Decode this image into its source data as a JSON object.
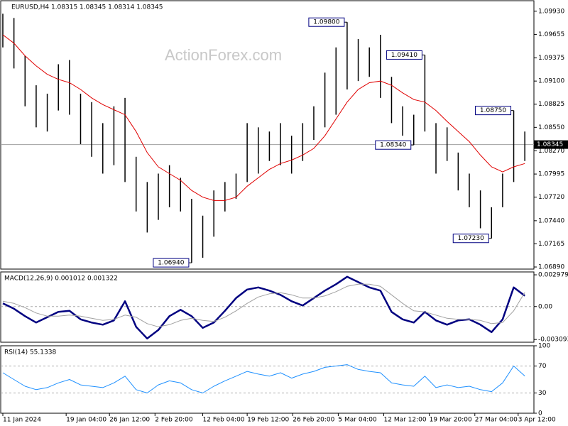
{
  "chart_data": [
    {
      "type": "ohlc",
      "title": "EURUSD,H4  1.08315 1.08345 1.08314 1.08345",
      "watermark": "ActionForex.com",
      "ylim": [
        1.06865,
        1.10055
      ],
      "yticks": [
        {
          "value": 1.0993,
          "label": "1.09930"
        },
        {
          "value": 1.09655,
          "label": "1.09655"
        },
        {
          "value": 1.09375,
          "label": "1.09375"
        },
        {
          "value": 1.091,
          "label": "1.09100"
        },
        {
          "value": 1.08825,
          "label": "1.08825"
        },
        {
          "value": 1.0855,
          "label": "1.08550"
        },
        {
          "value": 1.0827,
          "label": "1.08270"
        },
        {
          "value": 1.07995,
          "label": "1.07995"
        },
        {
          "value": 1.0772,
          "label": "1.07720"
        },
        {
          "value": 1.0744,
          "label": "1.07440"
        },
        {
          "value": 1.07165,
          "label": "1.07165"
        },
        {
          "value": 1.0689,
          "label": "1.06890"
        }
      ],
      "series": [
        {
          "kind": "bars",
          "color": "#000000",
          "high": [
            1.099,
            1.0985,
            1.094,
            1.0905,
            1.0895,
            1.093,
            1.0935,
            1.0895,
            1.0885,
            1.086,
            1.088,
            1.089,
            1.082,
            1.079,
            1.08,
            1.081,
            1.0795,
            1.077,
            1.075,
            1.078,
            1.079,
            1.08,
            1.086,
            1.0855,
            1.085,
            1.086,
            1.0845,
            1.086,
            1.088,
            1.092,
            1.095,
            1.098,
            1.096,
            1.095,
            1.0965,
            1.0915,
            1.088,
            1.087,
            1.0941,
            1.086,
            1.0855,
            1.0825,
            1.08,
            1.078,
            1.076,
            1.08,
            1.0875,
            1.085
          ],
          "low": [
            1.095,
            1.0925,
            1.088,
            1.0855,
            1.085,
            1.0875,
            1.087,
            1.0835,
            1.082,
            1.08,
            1.081,
            1.079,
            1.0755,
            1.073,
            1.0745,
            1.076,
            1.0755,
            1.0694,
            1.07,
            1.0725,
            1.0755,
            1.077,
            1.079,
            1.08,
            1.0815,
            1.081,
            1.08,
            1.0815,
            1.084,
            1.0855,
            1.087,
            1.09,
            1.091,
            1.0915,
            1.089,
            1.086,
            1.0845,
            1.0834,
            1.085,
            1.08,
            1.0815,
            1.078,
            1.076,
            1.0735,
            1.0723,
            1.076,
            1.079,
            1.0815
          ]
        },
        {
          "kind": "line",
          "color": "#e00000",
          "values": [
            1.0965,
            1.0955,
            1.094,
            1.0928,
            1.0918,
            1.0912,
            1.0908,
            1.09,
            1.089,
            1.0882,
            1.0876,
            1.087,
            1.085,
            1.0825,
            1.0808,
            1.08,
            1.0792,
            1.078,
            1.0772,
            1.0768,
            1.0768,
            1.0772,
            1.0785,
            1.0795,
            1.0805,
            1.0812,
            1.0816,
            1.0822,
            1.083,
            1.0845,
            1.0865,
            1.0885,
            1.09,
            1.0908,
            1.091,
            1.0905,
            1.0896,
            1.0888,
            1.0885,
            1.0875,
            1.0862,
            1.085,
            1.0838,
            1.0822,
            1.0808,
            1.0802,
            1.0808,
            1.0812
          ]
        }
      ],
      "last_price": {
        "value": 1.08345,
        "label": "1.08345"
      },
      "annotations": [
        {
          "x": 31,
          "value": 1.098,
          "label": "1.09800"
        },
        {
          "x": 38,
          "value": 1.0941,
          "label": "1.09410"
        },
        {
          "x": 46,
          "value": 1.0875,
          "label": "1.08750"
        },
        {
          "x": 37,
          "value": 1.0834,
          "label": "1.08340"
        },
        {
          "x": 44,
          "value": 1.0723,
          "label": "1.07230"
        },
        {
          "x": 17,
          "value": 1.0694,
          "label": "1.06940"
        }
      ]
    },
    {
      "type": "macd",
      "title": "MACD(12,26,9) 0.001012 0.001322",
      "ylim": [
        -0.00335,
        0.00325
      ],
      "yticks": [
        0.002979,
        {
          "value": 0,
          "label": "0.00"
        },
        -0.003093
      ],
      "series": [
        {
          "color": "#000080",
          "width": 2.5,
          "values": [
            0.0003,
            -0.0002,
            -0.0009,
            -0.0015,
            -0.001,
            -0.0005,
            -0.0004,
            -0.0012,
            -0.0015,
            -0.0017,
            -0.0013,
            0.0005,
            -0.0019,
            -0.003,
            -0.0022,
            -0.0009,
            -0.0003,
            -0.0009,
            -0.002,
            -0.0015,
            -0.0004,
            0.0008,
            0.0016,
            0.0018,
            0.0015,
            0.0011,
            0.0005,
            0.0001,
            0.0008,
            0.0015,
            0.0021,
            0.0028,
            0.0023,
            0.0018,
            0.0015,
            -0.0005,
            -0.0012,
            -0.0015,
            -0.0005,
            -0.0013,
            -0.0017,
            -0.0013,
            -0.0012,
            -0.0017,
            -0.0024,
            -0.0012,
            0.0018,
            0.001012
          ]
        },
        {
          "color": "#a0a0a0",
          "width": 1,
          "values": [
            0.0005,
            0.0003,
            -0.0001,
            -0.0006,
            -0.0009,
            -0.0009,
            -0.0008,
            -0.0009,
            -0.0011,
            -0.0013,
            -0.0012,
            -0.0008,
            -0.001,
            -0.0016,
            -0.0019,
            -0.0017,
            -0.0013,
            -0.0011,
            -0.0013,
            -0.0014,
            -0.001,
            -0.0004,
            0.0003,
            0.0009,
            0.0012,
            0.0013,
            0.0011,
            0.0008,
            0.0008,
            0.001,
            0.0014,
            0.0019,
            0.0021,
            0.0021,
            0.0019,
            0.0011,
            0.0003,
            -0.0004,
            -0.0005,
            -0.0008,
            -0.0011,
            -0.0012,
            -0.0012,
            -0.0013,
            -0.0016,
            -0.0015,
            -0.0004,
            0.001322
          ]
        }
      ]
    },
    {
      "type": "line",
      "title": "RSI(14) 55.1338",
      "ylim": [
        0,
        100
      ],
      "yticks": [
        100,
        70,
        30,
        0
      ],
      "levels": [
        70,
        30
      ],
      "series": [
        {
          "color": "#1e90ff",
          "width": 1,
          "values": [
            60,
            50,
            40,
            35,
            38,
            45,
            50,
            42,
            40,
            38,
            45,
            55,
            35,
            30,
            42,
            48,
            45,
            35,
            30,
            40,
            48,
            55,
            62,
            58,
            55,
            60,
            52,
            58,
            62,
            68,
            70,
            72,
            65,
            62,
            60,
            45,
            42,
            40,
            55,
            38,
            42,
            38,
            40,
            35,
            32,
            45,
            70,
            55.1338
          ]
        }
      ],
      "xlim": [
        0,
        47.5
      ],
      "xticks": [
        {
          "value": 0,
          "label": "11 Jan 2024"
        },
        {
          "value": 5.7,
          "label": "19 Jan 04:00"
        },
        {
          "value": 9.6,
          "label": "26 Jan 12:00"
        },
        {
          "value": 13.7,
          "label": "2 Feb 20:00"
        },
        {
          "value": 18,
          "label": "12 Feb 04:00"
        },
        {
          "value": 22,
          "label": "19 Feb 12:00"
        },
        {
          "value": 26.1,
          "label": "26 Feb 20:00"
        },
        {
          "value": 30.2,
          "label": "5 Mar 04:00"
        },
        {
          "value": 34.3,
          "label": "12 Mar 12:00"
        },
        {
          "value": 38.4,
          "label": "19 Mar 20:00"
        },
        {
          "value": 42.5,
          "label": "27 Mar 04:00"
        },
        {
          "value": 46.4,
          "label": "3 Apr 12:00"
        }
      ]
    }
  ]
}
